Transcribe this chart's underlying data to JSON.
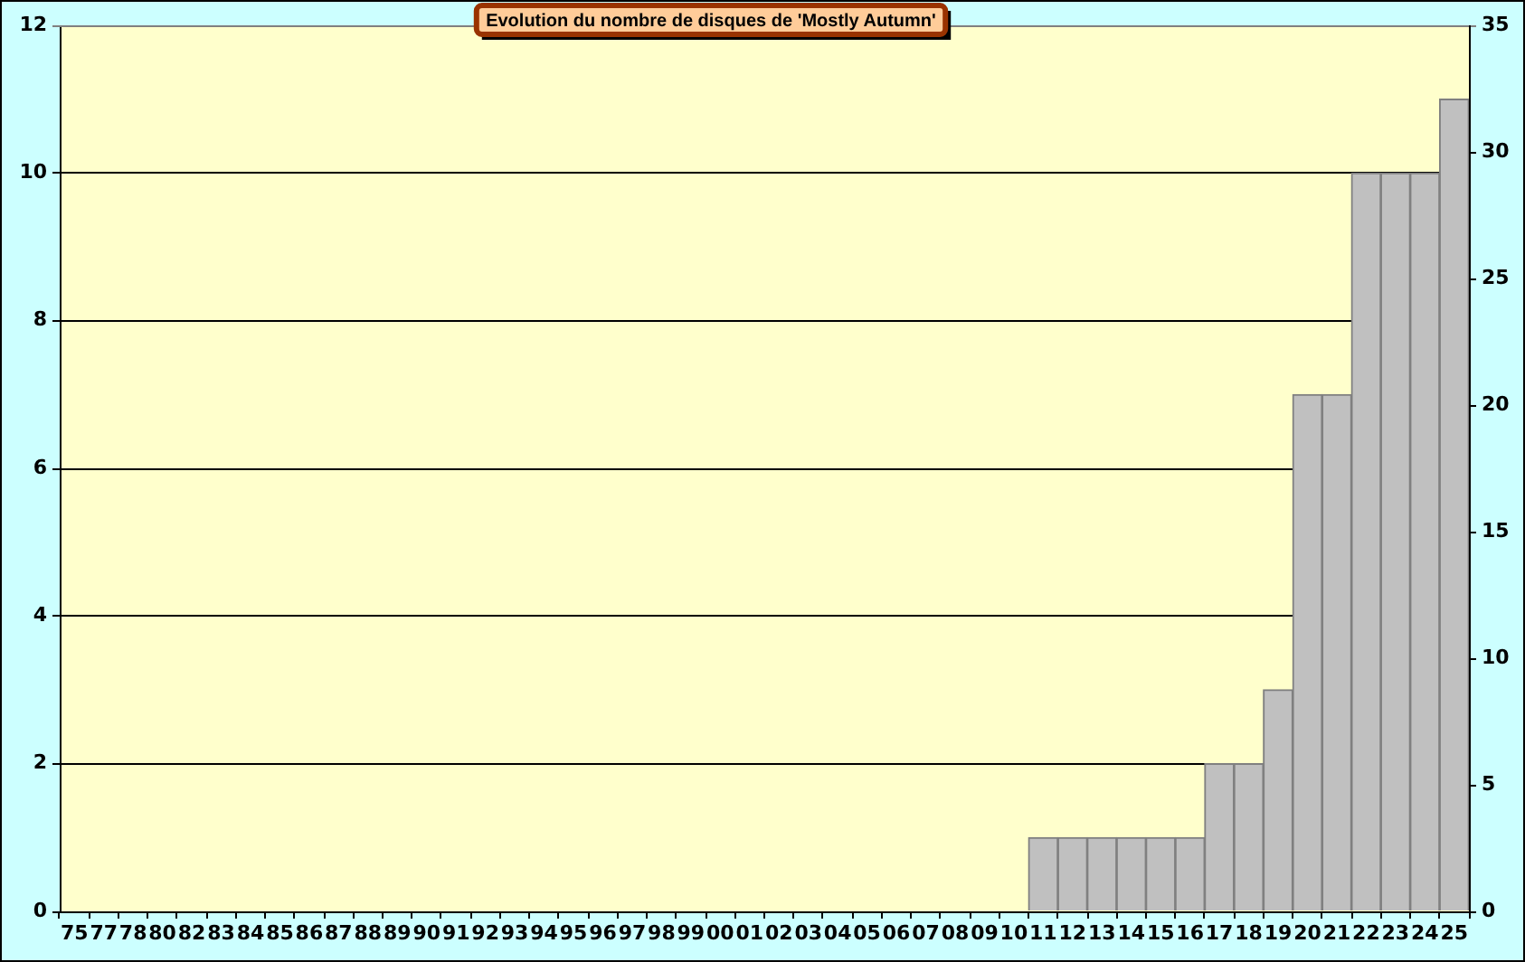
{
  "chart_data": {
    "type": "bar",
    "title": "Evolution du nombre de disques de 'Mostly Autumn'",
    "categories": [
      "75",
      "77",
      "78",
      "80",
      "82",
      "83",
      "84",
      "85",
      "86",
      "87",
      "88",
      "89",
      "90",
      "91",
      "92",
      "93",
      "94",
      "95",
      "96",
      "97",
      "98",
      "99",
      "00",
      "01",
      "02",
      "03",
      "04",
      "05",
      "06",
      "07",
      "08",
      "09",
      "10",
      "11",
      "12",
      "13",
      "14",
      "15",
      "16",
      "17",
      "18",
      "19",
      "20",
      "21",
      "22",
      "23",
      "24",
      "25"
    ],
    "values": [
      0,
      0,
      0,
      0,
      0,
      0,
      0,
      0,
      0,
      0,
      0,
      0,
      0,
      0,
      0,
      0,
      0,
      0,
      0,
      0,
      0,
      0,
      0,
      0,
      0,
      0,
      0,
      0,
      0,
      0,
      0,
      0,
      0,
      1,
      1,
      1,
      1,
      1,
      1,
      2,
      2,
      3,
      7,
      7,
      10,
      10,
      10,
      11
    ],
    "color": "#c0c0c0",
    "ylim": [
      0,
      12
    ],
    "yticks": [
      0,
      2,
      4,
      6,
      8,
      10,
      12
    ],
    "y2lim": [
      0,
      35
    ],
    "y2ticks": [
      0,
      5,
      10,
      15,
      20,
      25,
      30,
      35
    ],
    "grid": "y"
  }
}
